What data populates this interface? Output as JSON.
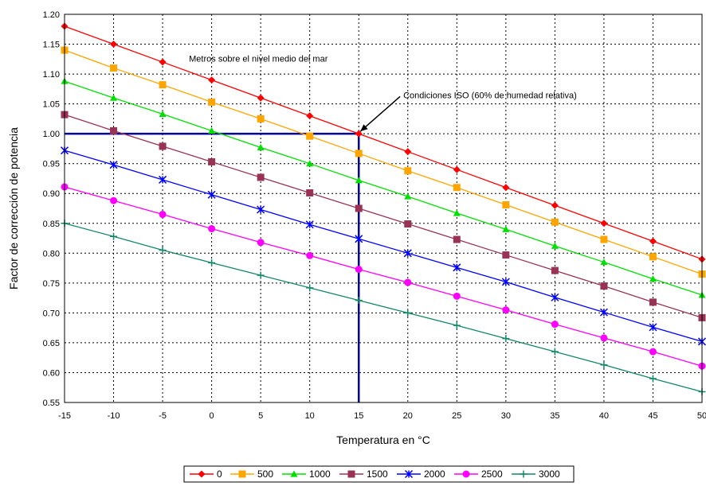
{
  "chart_data": {
    "type": "line",
    "title": "",
    "xlabel": "Temperatura en °C",
    "ylabel": "Factor de corrección de potencia",
    "xlim": [
      -15,
      50
    ],
    "ylim": [
      0.55,
      1.2
    ],
    "x": [
      -15,
      -10,
      -5,
      0,
      5,
      10,
      15,
      20,
      25,
      30,
      35,
      40,
      45,
      50
    ],
    "x_tick_labels": [
      "-15",
      "-10",
      "-5",
      "0",
      "5",
      "10",
      "15",
      "20",
      "25",
      "30",
      "35",
      "40",
      "45",
      "50"
    ],
    "y_tick_labels": [
      "0.55",
      "0.60",
      "0.65",
      "0.70",
      "0.75",
      "0.80",
      "0.85",
      "0.90",
      "0.95",
      "1.00",
      "1.05",
      "1.10",
      "1.15",
      "1.20"
    ],
    "grid": true,
    "legend_position": "bottom",
    "series": [
      {
        "name": "0",
        "color": "#ff0000",
        "marker": "diamond",
        "values": [
          1.18,
          1.15,
          1.12,
          1.09,
          1.06,
          1.03,
          1.0,
          0.97,
          0.94,
          0.91,
          0.88,
          0.85,
          0.82,
          0.79
        ]
      },
      {
        "name": "500",
        "color": "#ffa500",
        "marker": "square",
        "values": [
          1.14,
          1.11,
          1.082,
          1.053,
          1.025,
          0.996,
          0.967,
          0.938,
          0.91,
          0.881,
          0.852,
          0.823,
          0.794,
          0.765
        ]
      },
      {
        "name": "1000",
        "color": "#00e000",
        "marker": "triangle",
        "values": [
          1.088,
          1.06,
          1.033,
          1.005,
          0.977,
          0.95,
          0.922,
          0.895,
          0.867,
          0.84,
          0.812,
          0.785,
          0.757,
          0.73
        ]
      },
      {
        "name": "1500",
        "color": "#993355",
        "marker": "square",
        "values": [
          1.032,
          1.005,
          0.979,
          0.953,
          0.927,
          0.901,
          0.875,
          0.849,
          0.823,
          0.797,
          0.771,
          0.745,
          0.718,
          0.692
        ]
      },
      {
        "name": "2000",
        "color": "#0000ff",
        "marker": "star",
        "values": [
          0.972,
          0.948,
          0.923,
          0.898,
          0.873,
          0.848,
          0.824,
          0.8,
          0.776,
          0.752,
          0.726,
          0.701,
          0.676,
          0.652
        ]
      },
      {
        "name": "2500",
        "color": "#ff00ff",
        "marker": "circle",
        "values": [
          0.911,
          0.888,
          0.865,
          0.841,
          0.818,
          0.796,
          0.773,
          0.751,
          0.728,
          0.705,
          0.681,
          0.658,
          0.635,
          0.611
        ]
      },
      {
        "name": "3000",
        "color": "#118866",
        "marker": "plus",
        "values": [
          0.85,
          0.828,
          0.805,
          0.784,
          0.763,
          0.742,
          0.721,
          0.7,
          0.679,
          0.657,
          0.635,
          0.613,
          0.59,
          0.568
        ]
      }
    ],
    "reference_lines": {
      "x": 15,
      "y": 1.0,
      "color": "#000099"
    },
    "annotations": [
      {
        "text": "Metros sobre el nivel medio del mar",
        "x": 5,
        "y": 1.13
      },
      {
        "text": "Condiciones ISO (60% de humedad relativa)",
        "x": 21,
        "y": 1.065,
        "arrow_to": [
          15,
          1.0
        ]
      }
    ]
  }
}
